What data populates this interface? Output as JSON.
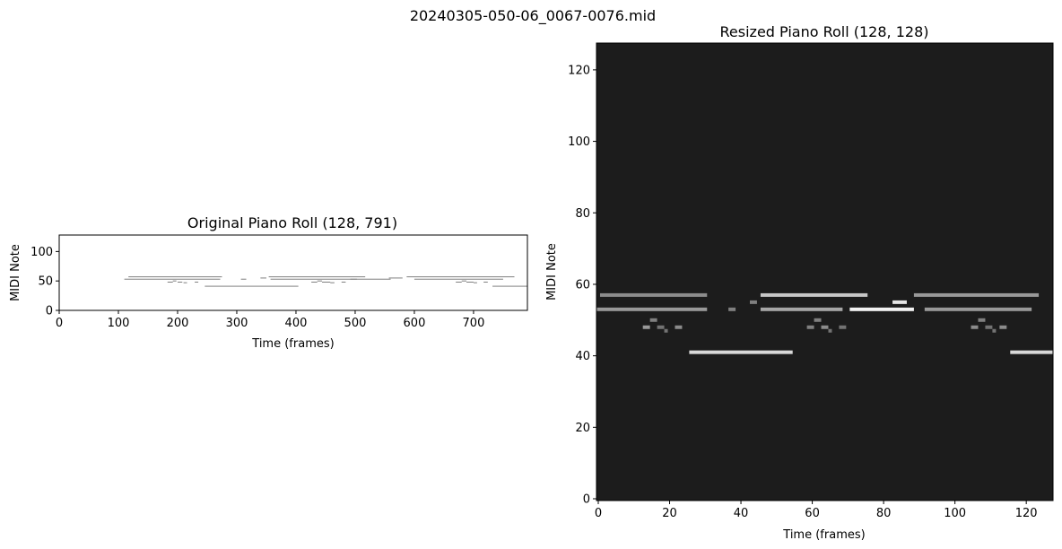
{
  "figure": {
    "suptitle": "20240305-050-06_0067-0076.mid"
  },
  "colors": {
    "background": "#ffffff",
    "axes_edge": "#000000",
    "resized_bg": "#1c1c1c",
    "note_original": "#7f7f7f"
  },
  "chart_data": [
    {
      "type": "heatmap",
      "title": "Original Piano Roll (128, 791)",
      "xlabel": "Time (frames)",
      "ylabel": "MIDI Note",
      "xlim": [
        0,
        791
      ],
      "ylim": [
        0,
        127
      ],
      "xticks": [
        0,
        100,
        200,
        300,
        400,
        500,
        600,
        700
      ],
      "yticks": [
        0,
        50,
        100
      ],
      "grid": false,
      "colormap": "gray_r",
      "notes": [
        {
          "pitch": 57,
          "start": 117,
          "end": 275,
          "v": 0.6
        },
        {
          "pitch": 53,
          "start": 110,
          "end": 272,
          "v": 0.6
        },
        {
          "pitch": 48,
          "start": 183,
          "end": 192,
          "v": 0.6
        },
        {
          "pitch": 50,
          "start": 192,
          "end": 198,
          "v": 0.6
        },
        {
          "pitch": 48,
          "start": 200,
          "end": 208,
          "v": 0.6
        },
        {
          "pitch": 47,
          "start": 210,
          "end": 216,
          "v": 0.6
        },
        {
          "pitch": 48,
          "start": 229,
          "end": 235,
          "v": 0.6
        },
        {
          "pitch": 41,
          "start": 246,
          "end": 404,
          "v": 0.6
        },
        {
          "pitch": 53,
          "start": 307,
          "end": 316,
          "v": 0.6
        },
        {
          "pitch": 55,
          "start": 340,
          "end": 350,
          "v": 0.6
        },
        {
          "pitch": 57,
          "start": 354,
          "end": 517,
          "v": 0.6
        },
        {
          "pitch": 53,
          "start": 357,
          "end": 503,
          "v": 0.6
        },
        {
          "pitch": 48,
          "start": 426,
          "end": 436,
          "v": 0.6
        },
        {
          "pitch": 50,
          "start": 436,
          "end": 444,
          "v": 0.6
        },
        {
          "pitch": 48,
          "start": 444,
          "end": 458,
          "v": 0.6
        },
        {
          "pitch": 47,
          "start": 458,
          "end": 465,
          "v": 0.6
        },
        {
          "pitch": 48,
          "start": 477,
          "end": 484,
          "v": 0.6
        },
        {
          "pitch": 53,
          "start": 492,
          "end": 560,
          "v": 0.6
        },
        {
          "pitch": 55,
          "start": 557,
          "end": 580,
          "v": 0.6
        },
        {
          "pitch": 57,
          "start": 587,
          "end": 769,
          "v": 0.6
        },
        {
          "pitch": 53,
          "start": 600,
          "end": 750,
          "v": 0.6
        },
        {
          "pitch": 48,
          "start": 670,
          "end": 680,
          "v": 0.6
        },
        {
          "pitch": 50,
          "start": 680,
          "end": 688,
          "v": 0.6
        },
        {
          "pitch": 48,
          "start": 688,
          "end": 700,
          "v": 0.6
        },
        {
          "pitch": 47,
          "start": 700,
          "end": 706,
          "v": 0.6
        },
        {
          "pitch": 48,
          "start": 717,
          "end": 724,
          "v": 0.6
        },
        {
          "pitch": 41,
          "start": 732,
          "end": 791,
          "v": 0.6
        }
      ]
    },
    {
      "type": "heatmap",
      "title": "Resized Piano Roll (128, 128)",
      "xlabel": "Time (frames)",
      "ylabel": "MIDI Note",
      "xlim": [
        0,
        127
      ],
      "ylim": [
        0,
        127
      ],
      "xticks": [
        0,
        20,
        40,
        60,
        80,
        100,
        120
      ],
      "yticks": [
        0,
        20,
        40,
        60,
        80,
        100,
        120
      ],
      "grid": false,
      "colormap": "gray",
      "notes": [
        {
          "pitch": 57,
          "start": 1,
          "end": 30,
          "v": 0.55
        },
        {
          "pitch": 53,
          "start": 0,
          "end": 30,
          "v": 0.6
        },
        {
          "pitch": 50,
          "start": 15,
          "end": 16,
          "v": 0.5
        },
        {
          "pitch": 48,
          "start": 13,
          "end": 14,
          "v": 0.6
        },
        {
          "pitch": 48,
          "start": 17,
          "end": 18,
          "v": 0.45
        },
        {
          "pitch": 47,
          "start": 19,
          "end": 19,
          "v": 0.45
        },
        {
          "pitch": 48,
          "start": 22,
          "end": 23,
          "v": 0.55
        },
        {
          "pitch": 41,
          "start": 26,
          "end": 54,
          "v": 0.85
        },
        {
          "pitch": 53,
          "start": 37,
          "end": 38,
          "v": 0.5
        },
        {
          "pitch": 55,
          "start": 43,
          "end": 44,
          "v": 0.5
        },
        {
          "pitch": 57,
          "start": 46,
          "end": 75,
          "v": 0.78
        },
        {
          "pitch": 53,
          "start": 46,
          "end": 68,
          "v": 0.65
        },
        {
          "pitch": 50,
          "start": 61,
          "end": 62,
          "v": 0.5
        },
        {
          "pitch": 48,
          "start": 59,
          "end": 60,
          "v": 0.5
        },
        {
          "pitch": 48,
          "start": 63,
          "end": 64,
          "v": 0.55
        },
        {
          "pitch": 47,
          "start": 65,
          "end": 65,
          "v": 0.45
        },
        {
          "pitch": 48,
          "start": 68,
          "end": 69,
          "v": 0.45
        },
        {
          "pitch": 53,
          "start": 71,
          "end": 88,
          "v": 0.95
        },
        {
          "pitch": 55,
          "start": 83,
          "end": 86,
          "v": 0.9
        },
        {
          "pitch": 57,
          "start": 89,
          "end": 123,
          "v": 0.6
        },
        {
          "pitch": 53,
          "start": 92,
          "end": 121,
          "v": 0.6
        },
        {
          "pitch": 50,
          "start": 107,
          "end": 108,
          "v": 0.5
        },
        {
          "pitch": 48,
          "start": 105,
          "end": 106,
          "v": 0.55
        },
        {
          "pitch": 48,
          "start": 109,
          "end": 110,
          "v": 0.45
        },
        {
          "pitch": 47,
          "start": 111,
          "end": 111,
          "v": 0.45
        },
        {
          "pitch": 48,
          "start": 113,
          "end": 114,
          "v": 0.55
        },
        {
          "pitch": 41,
          "start": 116,
          "end": 127,
          "v": 0.85
        }
      ]
    }
  ]
}
